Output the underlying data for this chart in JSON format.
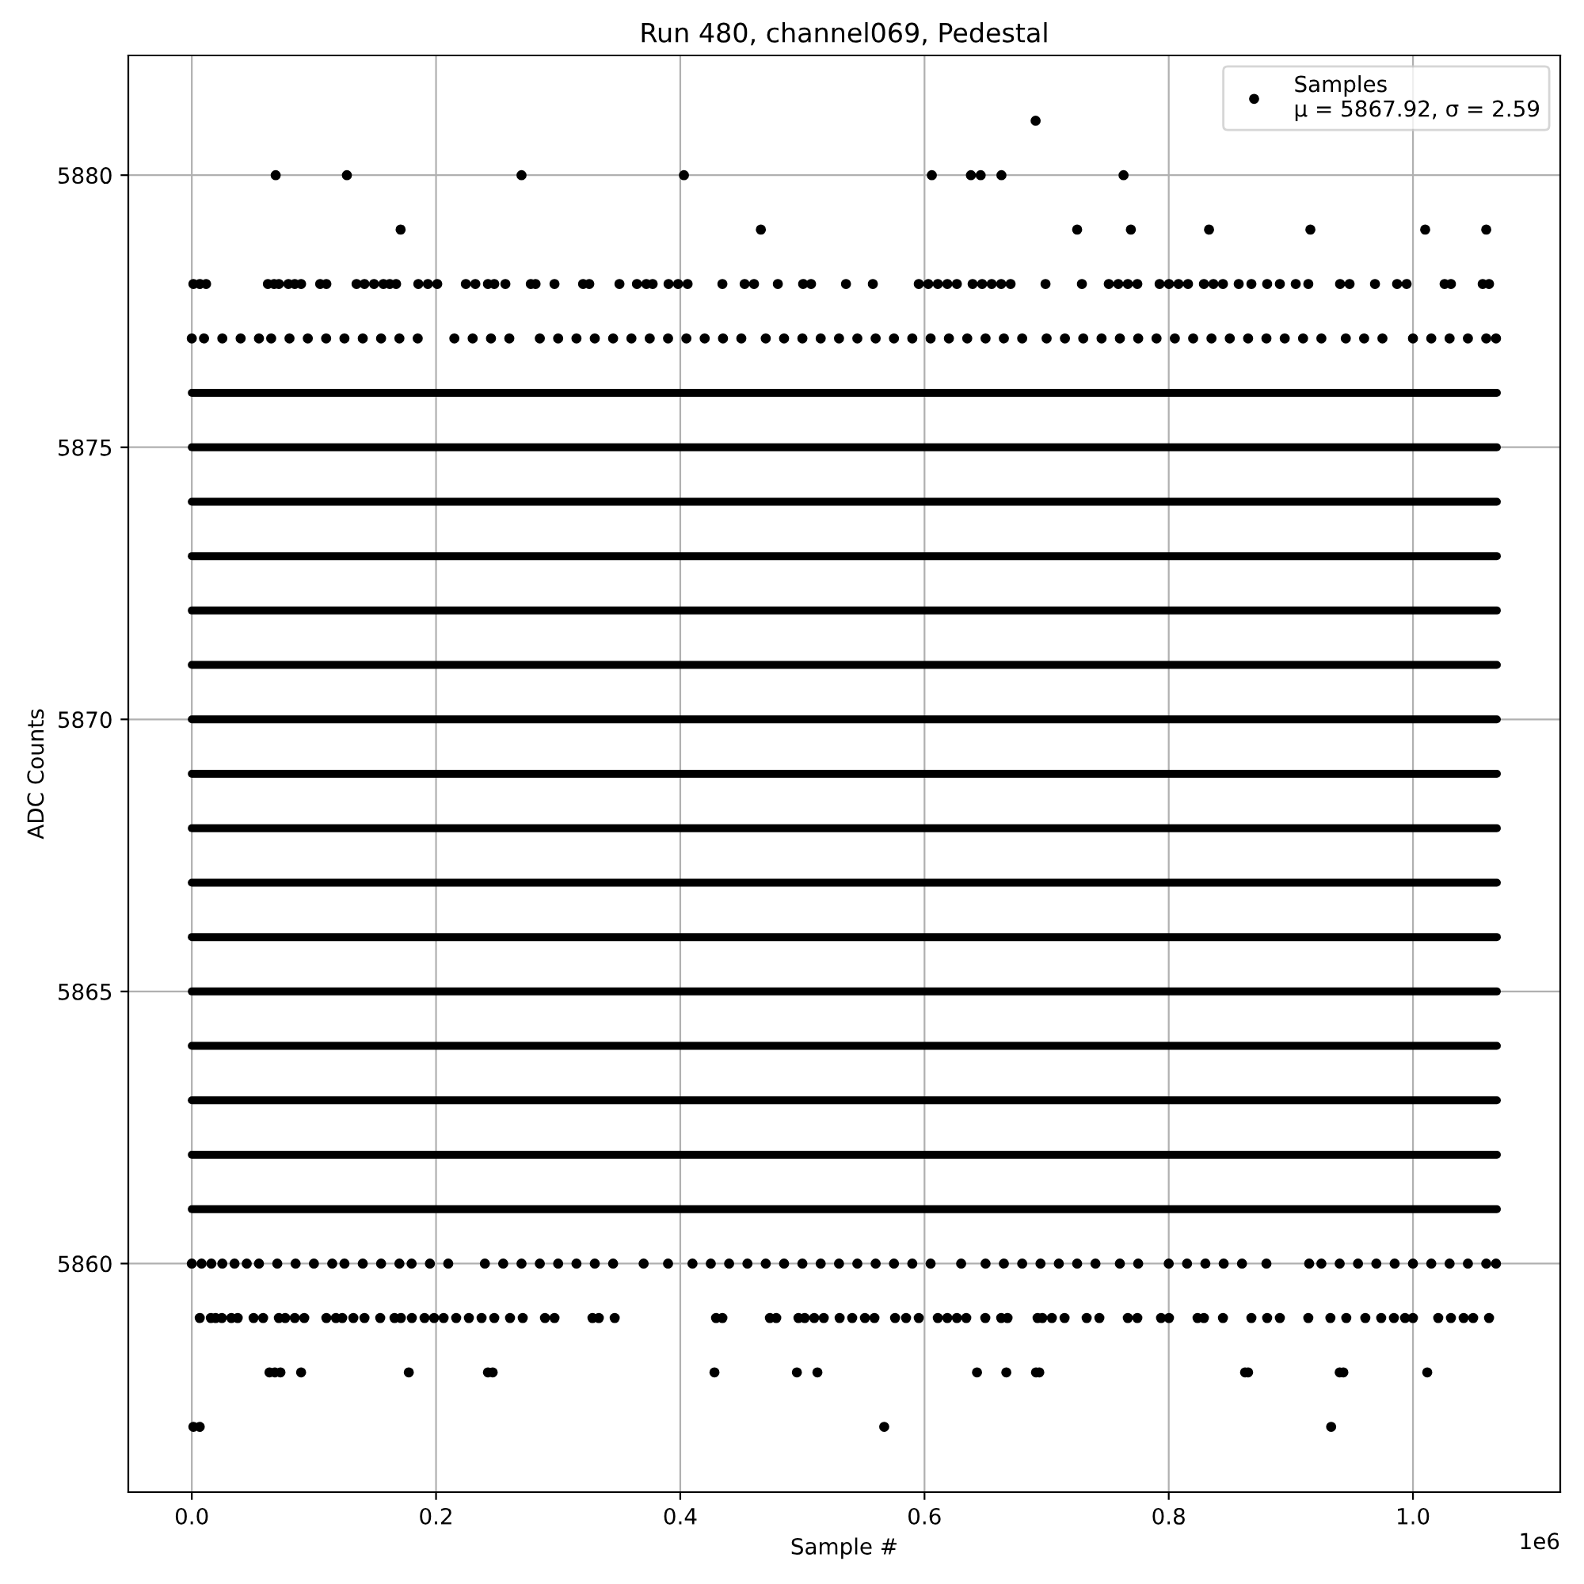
{
  "chart_data": {
    "type": "scatter",
    "title": "Run 480, channel069, Pedestal",
    "xlabel": "Sample #",
    "ylabel": "ADC Counts",
    "annotations": [
      "1e6"
    ],
    "xlim": [
      -0.052,
      1.1206
    ],
    "ylim": [
      5855.8,
      5882.2
    ],
    "xticks": [
      {
        "value": 0,
        "label": "0.0"
      },
      0.2,
      0.4,
      0.6,
      0.8,
      {
        "value": 1,
        "label": "1.0"
      }
    ],
    "yticks": [
      5860,
      5865,
      5870,
      5875,
      5880
    ],
    "grid": true,
    "legend": "top right",
    "marker": "circle",
    "series": [
      {
        "name": "Samples\nμ = 5867.92, σ = 2.59",
        "color": "#000000",
        "x": [
          0.691
        ],
        "values": [
          5881
        ]
      },
      {
        "color": "#000000",
        "x": [
          0.0687,
          0.127,
          0.27,
          0.403,
          0.606,
          0.638,
          0.646,
          0.663,
          0.763
        ],
        "values": [
          5880,
          5880,
          5880,
          5880,
          5880,
          5880,
          5880,
          5880,
          5880
        ]
      },
      {
        "color": "#000000",
        "x": [
          0.171,
          0.466,
          0.725,
          0.769,
          0.833,
          0.916,
          1.01,
          1.06
        ],
        "values": [
          5879,
          5879,
          5879,
          5879,
          5879,
          5879,
          5879,
          5879
        ]
      },
      {
        "color": "#000000",
        "x": [
          0.0013,
          0.0065,
          0.0117,
          0.0623,
          0.0674,
          0.0713,
          0.0791,
          0.0843,
          0.0895,
          0.1051,
          0.1102,
          0.1349,
          0.1414,
          0.1492,
          0.1569,
          0.1621,
          0.1673,
          0.1855,
          0.1933,
          0.201,
          0.2244,
          0.2322,
          0.2425,
          0.2477,
          0.2568,
          0.2776,
          0.2815,
          0.297,
          0.3204,
          0.3255,
          0.3502,
          0.3645,
          0.3722,
          0.3774,
          0.3904,
          0.3982,
          0.406,
          0.4345,
          0.4527,
          0.4604,
          0.4799,
          0.5006,
          0.5071,
          0.5357,
          0.5577,
          0.5953,
          0.6031,
          0.6109,
          0.6187,
          0.6265,
          0.6394,
          0.6472,
          0.655,
          0.6628,
          0.6705,
          0.6991,
          0.7289,
          0.7509,
          0.7587,
          0.7665,
          0.7743,
          0.7925,
          0.8002,
          0.808,
          0.8158,
          0.8288,
          0.8366,
          0.8444,
          0.8573,
          0.8677,
          0.8806,
          0.891,
          0.904,
          0.9143,
          0.9403,
          0.9481,
          0.9689,
          0.987,
          0.9948,
          1.0259,
          1.0311,
          1.0571,
          1.0623
        ],
        "values": [
          5878,
          5878,
          5878,
          5878,
          5878,
          5878,
          5878,
          5878,
          5878,
          5878,
          5878,
          5878,
          5878,
          5878,
          5878,
          5878,
          5878,
          5878,
          5878,
          5878,
          5878,
          5878,
          5878,
          5878,
          5878,
          5878,
          5878,
          5878,
          5878,
          5878,
          5878,
          5878,
          5878,
          5878,
          5878,
          5878,
          5878,
          5878,
          5878,
          5878,
          5878,
          5878,
          5878,
          5878,
          5878,
          5878,
          5878,
          5878,
          5878,
          5878,
          5878,
          5878,
          5878,
          5878,
          5878,
          5878,
          5878,
          5878,
          5878,
          5878,
          5878,
          5878,
          5878,
          5878,
          5878,
          5878,
          5878,
          5878,
          5878,
          5878,
          5878,
          5878,
          5878,
          5878,
          5878,
          5878,
          5878,
          5878,
          5878,
          5878,
          5878,
          5878,
          5878
        ]
      },
      {
        "color": "#000000",
        "x": [
          0.0,
          0.01,
          0.025,
          0.04,
          0.055,
          0.065,
          0.08,
          0.095,
          0.11,
          0.125,
          0.14,
          0.155,
          0.17,
          0.185,
          0.215,
          0.23,
          0.245,
          0.26,
          0.285,
          0.3,
          0.315,
          0.33,
          0.345,
          0.36,
          0.375,
          0.39,
          0.405,
          0.42,
          0.435,
          0.45,
          0.47,
          0.485,
          0.5,
          0.515,
          0.53,
          0.545,
          0.56,
          0.575,
          0.59,
          0.605,
          0.62,
          0.635,
          0.65,
          0.665,
          0.68,
          0.7,
          0.715,
          0.73,
          0.745,
          0.76,
          0.775,
          0.79,
          0.805,
          0.82,
          0.835,
          0.85,
          0.865,
          0.88,
          0.895,
          0.91,
          0.925,
          0.945,
          0.96,
          0.975,
          1.0,
          1.015,
          1.03,
          1.045,
          1.06,
          1.068
        ],
        "values": [
          5877,
          5877,
          5877,
          5877,
          5877,
          5877,
          5877,
          5877,
          5877,
          5877,
          5877,
          5877,
          5877,
          5877,
          5877,
          5877,
          5877,
          5877,
          5877,
          5877,
          5877,
          5877,
          5877,
          5877,
          5877,
          5877,
          5877,
          5877,
          5877,
          5877,
          5877,
          5877,
          5877,
          5877,
          5877,
          5877,
          5877,
          5877,
          5877,
          5877,
          5877,
          5877,
          5877,
          5877,
          5877,
          5877,
          5877,
          5877,
          5877,
          5877,
          5877,
          5877,
          5877,
          5877,
          5877,
          5877,
          5877,
          5877,
          5877,
          5877,
          5877,
          5877,
          5877,
          5877,
          5877,
          5877,
          5877,
          5877,
          5877,
          5877
        ]
      },
      {
        "type": "line",
        "marker": "none",
        "color": "#000000",
        "x": [
          0,
          1.0687
        ],
        "values": [
          5876,
          5876
        ]
      },
      {
        "type": "line",
        "marker": "none",
        "color": "#000000",
        "x": [
          0,
          1.0687
        ],
        "values": [
          5875,
          5875
        ]
      },
      {
        "type": "line",
        "marker": "none",
        "color": "#000000",
        "x": [
          0,
          1.0687
        ],
        "values": [
          5874,
          5874
        ]
      },
      {
        "type": "line",
        "marker": "none",
        "color": "#000000",
        "x": [
          0,
          1.0687
        ],
        "values": [
          5873,
          5873
        ]
      },
      {
        "type": "line",
        "marker": "none",
        "color": "#000000",
        "x": [
          0,
          1.0687
        ],
        "values": [
          5872,
          5872
        ]
      },
      {
        "type": "line",
        "marker": "none",
        "color": "#000000",
        "x": [
          0,
          1.0687
        ],
        "values": [
          5871,
          5871
        ]
      },
      {
        "type": "line",
        "marker": "none",
        "color": "#000000",
        "x": [
          0,
          1.0687
        ],
        "values": [
          5870,
          5870
        ]
      },
      {
        "type": "line",
        "marker": "none",
        "color": "#000000",
        "x": [
          0,
          1.0687
        ],
        "values": [
          5869,
          5869
        ]
      },
      {
        "type": "line",
        "marker": "none",
        "color": "#000000",
        "x": [
          0,
          1.0687
        ],
        "values": [
          5868,
          5868
        ]
      },
      {
        "type": "line",
        "marker": "none",
        "color": "#000000",
        "x": [
          0,
          1.0687
        ],
        "values": [
          5867,
          5867
        ]
      },
      {
        "type": "line",
        "marker": "none",
        "color": "#000000",
        "x": [
          0,
          1.0687
        ],
        "values": [
          5866,
          5866
        ]
      },
      {
        "type": "line",
        "marker": "none",
        "color": "#000000",
        "x": [
          0,
          1.0687
        ],
        "values": [
          5865,
          5865
        ]
      },
      {
        "type": "line",
        "marker": "none",
        "color": "#000000",
        "x": [
          0,
          1.0687
        ],
        "values": [
          5864,
          5864
        ]
      },
      {
        "type": "line",
        "marker": "none",
        "color": "#000000",
        "x": [
          0,
          1.0687
        ],
        "values": [
          5863,
          5863
        ]
      },
      {
        "type": "line",
        "marker": "none",
        "color": "#000000",
        "x": [
          0,
          1.0687
        ],
        "values": [
          5862,
          5862
        ]
      },
      {
        "type": "line",
        "marker": "none",
        "color": "#000000",
        "x": [
          0,
          1.0687
        ],
        "values": [
          5861,
          5861
        ]
      },
      {
        "color": "#000000",
        "x": [
          0.0,
          0.008,
          0.016,
          0.025,
          0.035,
          0.045,
          0.055,
          0.07,
          0.085,
          0.1,
          0.115,
          0.125,
          0.14,
          0.155,
          0.17,
          0.18,
          0.195,
          0.21,
          0.24,
          0.255,
          0.27,
          0.285,
          0.3,
          0.315,
          0.33,
          0.345,
          0.37,
          0.39,
          0.41,
          0.425,
          0.44,
          0.455,
          0.47,
          0.485,
          0.5,
          0.515,
          0.53,
          0.545,
          0.56,
          0.575,
          0.59,
          0.605,
          0.63,
          0.65,
          0.665,
          0.68,
          0.695,
          0.71,
          0.725,
          0.74,
          0.76,
          0.775,
          0.8,
          0.815,
          0.83,
          0.845,
          0.86,
          0.88,
          0.915,
          0.925,
          0.94,
          0.955,
          0.97,
          0.985,
          1.0,
          1.015,
          1.03,
          1.045,
          1.06,
          1.068
        ],
        "values": [
          5860,
          5860,
          5860,
          5860,
          5860,
          5860,
          5860,
          5860,
          5860,
          5860,
          5860,
          5860,
          5860,
          5860,
          5860,
          5860,
          5860,
          5860,
          5860,
          5860,
          5860,
          5860,
          5860,
          5860,
          5860,
          5860,
          5860,
          5860,
          5860,
          5860,
          5860,
          5860,
          5860,
          5860,
          5860,
          5860,
          5860,
          5860,
          5860,
          5860,
          5860,
          5860,
          5860,
          5860,
          5860,
          5860,
          5860,
          5860,
          5860,
          5860,
          5860,
          5860,
          5860,
          5860,
          5860,
          5860,
          5860,
          5860,
          5860,
          5860,
          5860,
          5860,
          5860,
          5860,
          5860,
          5860,
          5860,
          5860,
          5860,
          5860
        ]
      },
      {
        "color": "#000000",
        "x": [
          0.0065,
          0.0156,
          0.0195,
          0.0246,
          0.0324,
          0.0376,
          0.0506,
          0.0584,
          0.0713,
          0.0765,
          0.0843,
          0.0921,
          0.1102,
          0.118,
          0.1232,
          0.1323,
          0.1414,
          0.1543,
          0.166,
          0.1712,
          0.1802,
          0.1906,
          0.1984,
          0.2062,
          0.2165,
          0.2269,
          0.2373,
          0.2477,
          0.2606,
          0.271,
          0.2892,
          0.297,
          0.3281,
          0.3333,
          0.3463,
          0.4293,
          0.4345,
          0.4734,
          0.4786,
          0.4968,
          0.5019,
          0.5097,
          0.5175,
          0.5305,
          0.5408,
          0.5512,
          0.559,
          0.5759,
          0.5849,
          0.5953,
          0.6109,
          0.6187,
          0.6265,
          0.6342,
          0.6498,
          0.6628,
          0.668,
          0.6926,
          0.6965,
          0.7043,
          0.7147,
          0.7328,
          0.7432,
          0.7665,
          0.7743,
          0.7937,
          0.8002,
          0.8236,
          0.8288,
          0.8444,
          0.8677,
          0.8806,
          0.891,
          0.9143,
          0.9324,
          0.9454,
          0.961,
          0.974,
          0.9844,
          0.9935,
          1.0,
          1.0207,
          1.0311,
          1.0415,
          1.0493,
          1.0623
        ],
        "values": [
          5859,
          5859,
          5859,
          5859,
          5859,
          5859,
          5859,
          5859,
          5859,
          5859,
          5859,
          5859,
          5859,
          5859,
          5859,
          5859,
          5859,
          5859,
          5859,
          5859,
          5859,
          5859,
          5859,
          5859,
          5859,
          5859,
          5859,
          5859,
          5859,
          5859,
          5859,
          5859,
          5859,
          5859,
          5859,
          5859,
          5859,
          5859,
          5859,
          5859,
          5859,
          5859,
          5859,
          5859,
          5859,
          5859,
          5859,
          5859,
          5859,
          5859,
          5859,
          5859,
          5859,
          5859,
          5859,
          5859,
          5859,
          5859,
          5859,
          5859,
          5859,
          5859,
          5859,
          5859,
          5859,
          5859,
          5859,
          5859,
          5859,
          5859,
          5859,
          5859,
          5859,
          5859,
          5859,
          5859,
          5859,
          5859,
          5859,
          5859,
          5859,
          5859,
          5859,
          5859,
          5859,
          5859
        ]
      },
      {
        "color": "#000000",
        "x": [
          0.0636,
          0.068,
          0.0726,
          0.0895,
          0.1777,
          0.2425,
          0.2464,
          0.428,
          0.4955,
          0.5123,
          0.643,
          0.667,
          0.6913,
          0.694,
          0.8625,
          0.865,
          0.94,
          0.943,
          1.0117
        ],
        "values": [
          5858,
          5858,
          5858,
          5858,
          5858,
          5858,
          5858,
          5858,
          5858,
          5858,
          5858,
          5858,
          5858,
          5858,
          5858,
          5858,
          5858,
          5858,
          5858
        ]
      },
      {
        "color": "#000000",
        "x": [
          0.0013,
          0.0065,
          0.567,
          0.933
        ],
        "values": [
          5857,
          5857,
          5857,
          5857
        ]
      }
    ]
  }
}
